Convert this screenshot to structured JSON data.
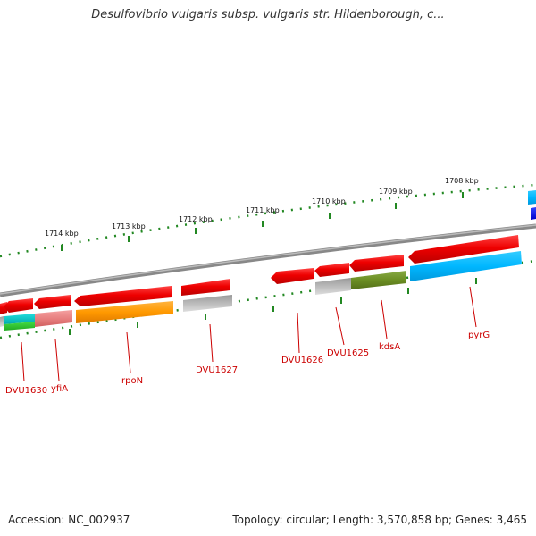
{
  "title": "Desulfovibrio vulgaris subsp. vulgaris str. Hildenborough, c...",
  "footer": {
    "accession": "Accession: NC_002937",
    "summary": "Topology: circular; Length: 3,570,858 bp; Genes: 3,465"
  },
  "kbp_labels": [
    "1714 kbp",
    "1713 kbp",
    "1712 kbp",
    "1711 kbp",
    "1710 kbp",
    "1709 kbp",
    "1708 kbp"
  ],
  "gene_labels": [
    "DVU1630",
    "yfiA",
    "rpoN",
    "DVU1627",
    "DVU1626",
    "DVU1625",
    "kdsA",
    "pyrG"
  ],
  "colors": {
    "strand_forward": "#ee1111",
    "backbone": "#888888",
    "tick": "#228822",
    "label": "#cc0000"
  }
}
